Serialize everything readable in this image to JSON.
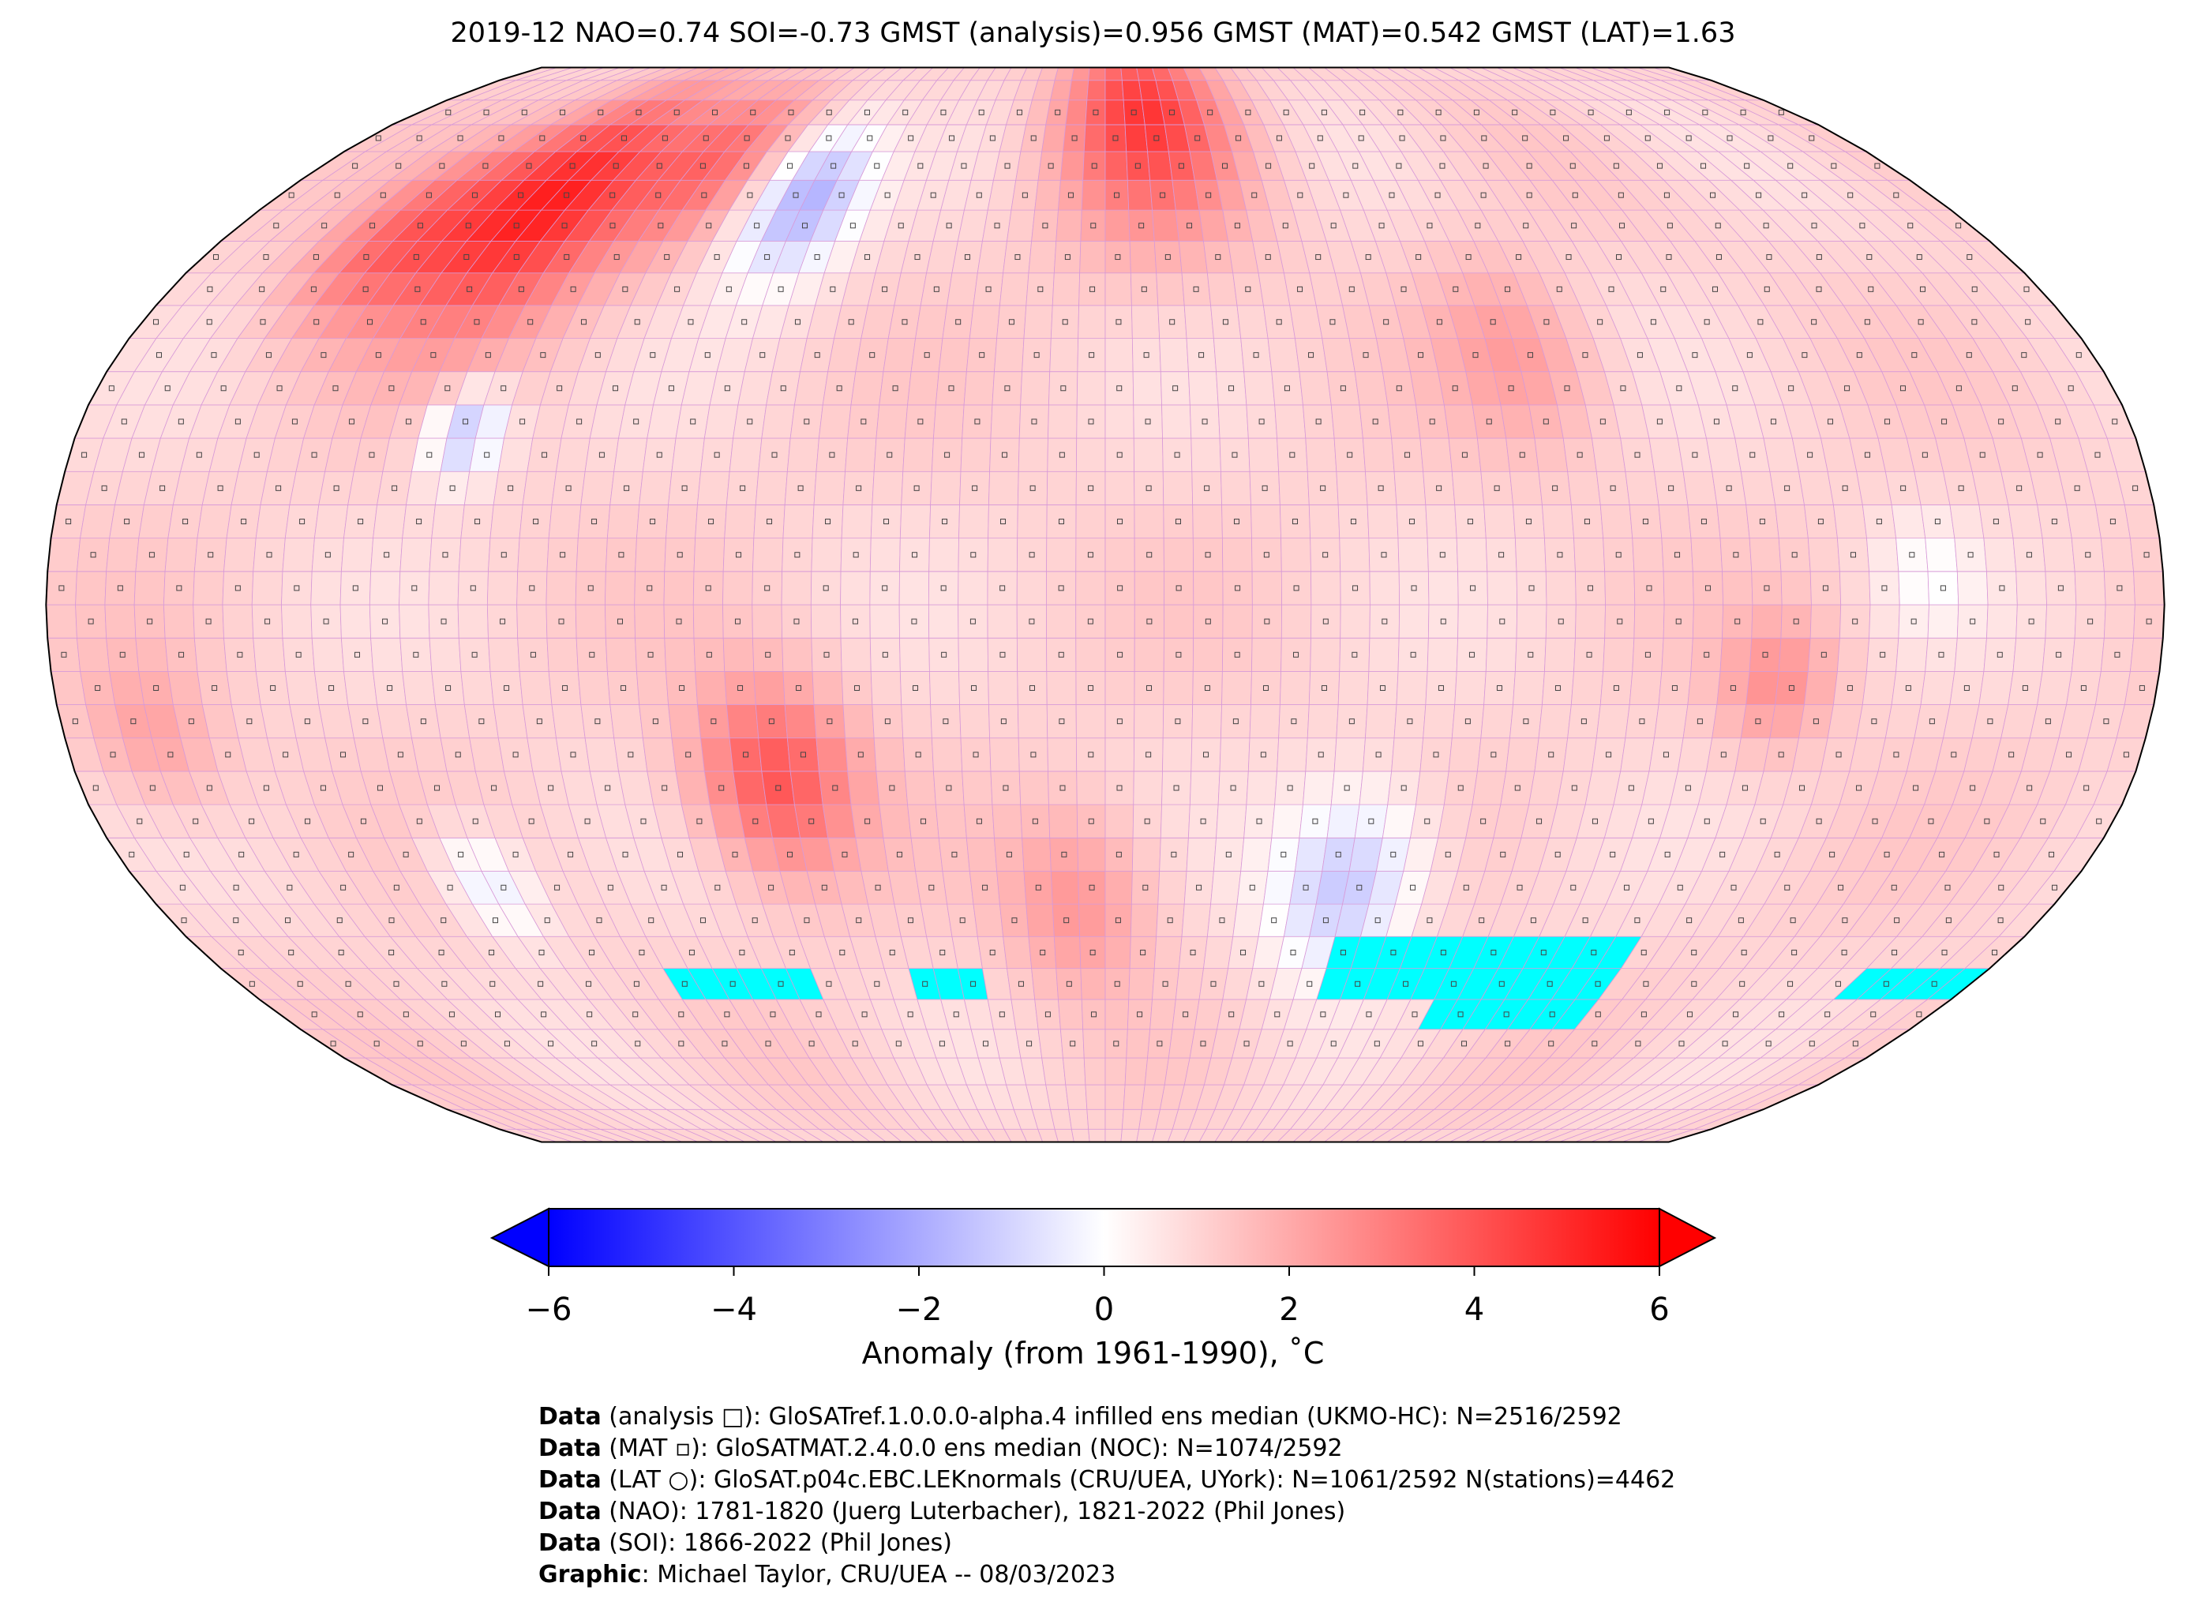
{
  "title": "2019-12 NAO=0.74 SOI=-0.73 GMST (analysis)=0.956 GMST (MAT)=0.542 GMST (LAT)=1.63",
  "colorbar": {
    "label": "Anomaly (from 1961-1990), ˚C",
    "ticks": [
      "−6",
      "−4",
      "−2",
      "0",
      "2",
      "4",
      "6"
    ],
    "range": [
      -6,
      6
    ],
    "colors": {
      "low": "#0000ff",
      "mid": "#ffffff",
      "high": "#ff0000",
      "missing": "#00ffff"
    }
  },
  "credits": [
    {
      "bold": "Data",
      "text": " (analysis □): GloSATref.1.0.0.0-alpha.4 infilled ens median (UKMO-HC): N=2516/2592"
    },
    {
      "bold": "Data",
      "text": " (MAT ▫): GloSATMAT.2.4.0.0 ens median (NOC): N=1074/2592"
    },
    {
      "bold": "Data",
      "text": " (LAT ○): GloSAT.p04c.EBC.LEKnormals (CRU/UEA, UYork): N=1061/2592 N(stations)=4462"
    },
    {
      "bold": "Data",
      "text": " (NAO): 1781-1820 (Juerg Luterbacher), 1821-2022 (Phil Jones)"
    },
    {
      "bold": "Data",
      "text": " (SOI): 1866-2022 (Phil Jones)"
    },
    {
      "bold": "Graphic",
      "text": ": Michael Taylor, CRU/UEA -- 08/03/2023"
    }
  ]
}
